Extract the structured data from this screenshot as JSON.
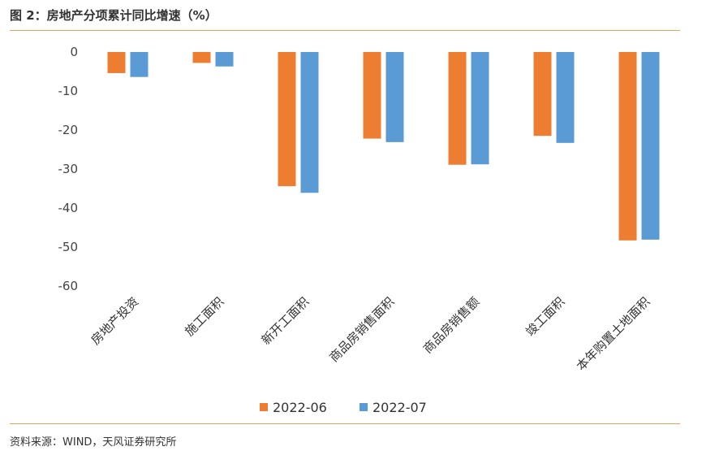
{
  "figure_title": "图 2：房地产分项累计同比增速（%）",
  "source": "资料来源：WIND，天风证券研究所",
  "colors": {
    "series_2022_06": "#ed7d31",
    "series_2022_07": "#5b9bd5",
    "rule": "#e8a25a"
  },
  "chart_data": {
    "type": "bar",
    "title": "",
    "xlabel": "",
    "ylabel": "",
    "categories": [
      "房地产投资",
      "施工面积",
      "新开工面积",
      "商品房销售面积",
      "商品房销售额",
      "竣工面积",
      "本年购置土地面积"
    ],
    "series": [
      {
        "name": "2022-06",
        "values": [
          -5.4,
          -2.8,
          -34.4,
          -22.2,
          -28.9,
          -21.5,
          -48.3
        ]
      },
      {
        "name": "2022-07",
        "values": [
          -6.4,
          -3.7,
          -36.1,
          -23.1,
          -28.8,
          -23.3,
          -48.1
        ]
      }
    ],
    "ylim": [
      -60,
      0
    ],
    "yticks": [
      0,
      -10,
      -20,
      -30,
      -40,
      -50,
      -60
    ],
    "ytick_labels": [
      "0",
      "-10",
      "-20",
      "-30",
      "-40",
      "-50",
      "-60"
    ],
    "grid": false,
    "legend_position": "bottom-center"
  }
}
